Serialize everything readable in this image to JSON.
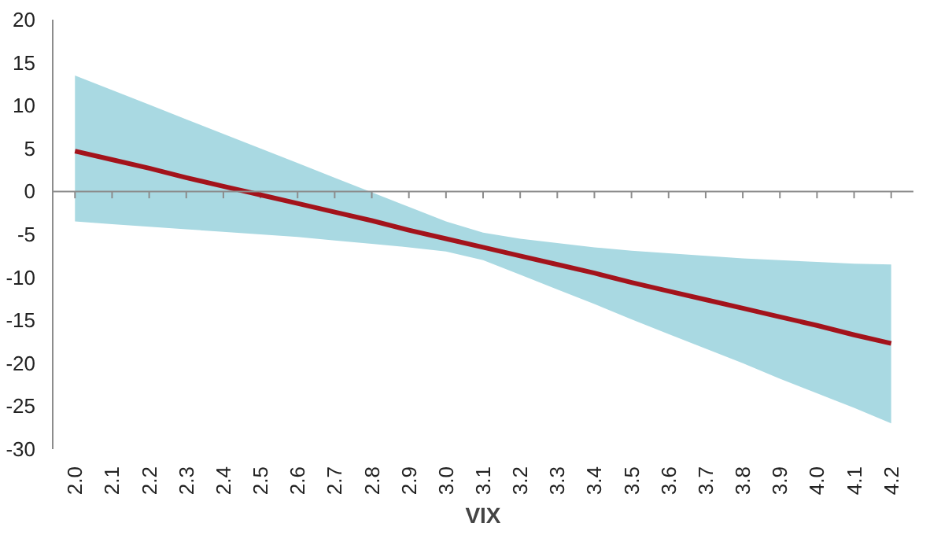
{
  "chart_data": {
    "type": "line",
    "xlabel": "VIX",
    "categories": [
      "2.0",
      "2.1",
      "2.2",
      "2.3",
      "2.4",
      "2.5",
      "2.6",
      "2.7",
      "2.8",
      "2.9",
      "3.0",
      "3.1",
      "3.2",
      "3.3",
      "3.4",
      "3.5",
      "3.6",
      "3.7",
      "3.8",
      "3.9",
      "4.0",
      "4.1",
      "4.2"
    ],
    "series": [
      {
        "color": "#a3131b",
        "values": [
          4.7,
          3.7,
          2.7,
          1.6,
          0.6,
          -0.4,
          -1.4,
          -2.4,
          -3.4,
          -4.5,
          -5.5,
          -6.5,
          -7.5,
          -8.5,
          -9.5,
          -10.6,
          -11.6,
          -12.6,
          -13.6,
          -14.6,
          -15.6,
          -16.7,
          -17.7
        ],
        "lower": [
          -3.5,
          -3.8,
          -4.1,
          -4.4,
          -4.7,
          -5.0,
          -5.3,
          -5.7,
          -6.1,
          -6.5,
          -7.0,
          -8.0,
          -9.7,
          -11.4,
          -13.1,
          -14.9,
          -16.6,
          -18.3,
          -20.0,
          -21.8,
          -23.5,
          -25.2,
          -27.0
        ],
        "upper": [
          13.5,
          11.8,
          10.1,
          8.4,
          6.7,
          5.0,
          3.3,
          1.6,
          -0.1,
          -1.8,
          -3.5,
          -4.8,
          -5.5,
          -6.0,
          -6.5,
          -6.9,
          -7.2,
          -7.5,
          -7.8,
          -8.0,
          -8.2,
          -8.4,
          -8.5
        ]
      }
    ],
    "ylim": [
      -30,
      20
    ],
    "yticks": [
      -30,
      -25,
      -20,
      -15,
      -10,
      -5,
      0,
      5,
      10,
      15,
      20
    ],
    "ref_lines": [
      {
        "axis": "y",
        "value": 0,
        "color": "#8c8c8c"
      }
    ],
    "grid": false,
    "marker": "none",
    "line_style": "solid"
  }
}
